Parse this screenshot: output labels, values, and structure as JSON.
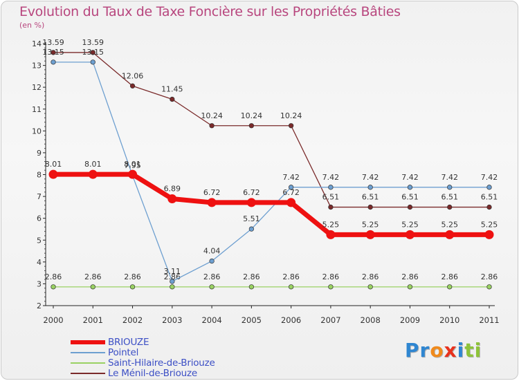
{
  "chart_data": {
    "type": "line",
    "title": "Evolution du Taux de Taxe Foncière sur les Propriétés Bâties",
    "ylabel": "(en %)",
    "xlabel": "",
    "categories": [
      "2000",
      "2001",
      "2002",
      "2003",
      "2004",
      "2005",
      "2006",
      "2007",
      "2008",
      "2009",
      "2010",
      "2011"
    ],
    "ylim": [
      2,
      14
    ],
    "yticks": [
      "2",
      "3",
      "4",
      "5",
      "6",
      "7",
      "8",
      "9",
      "10",
      "11",
      "12",
      "13",
      "14"
    ],
    "grid": false,
    "legend_position": "bottom-left",
    "series": [
      {
        "name": "Saint-Hilaire-de-Briouze",
        "color": "#99d162",
        "values": [
          2.86,
          2.86,
          2.86,
          2.86,
          2.86,
          2.86,
          2.86,
          2.86,
          2.86,
          2.86,
          2.86,
          2.86
        ],
        "labels": [
          "2.86",
          "2.86",
          "2.86",
          "2.86",
          "2.86",
          "2.86",
          "2.86",
          "2.86",
          "2.86",
          "2.86",
          "2.86",
          "2.86"
        ]
      },
      {
        "name": "Le Ménil-de-Briouze",
        "color": "#7a2a2a",
        "values": [
          13.59,
          13.59,
          12.06,
          11.45,
          10.24,
          10.24,
          10.24,
          6.51,
          6.51,
          6.51,
          6.51,
          6.51
        ],
        "labels": [
          "13.59",
          "13.59",
          "12.06",
          "11.45",
          "10.24",
          "10.24",
          "10.24",
          "6.51",
          "6.51",
          "6.51",
          "6.51",
          "6.51"
        ]
      },
      {
        "name": "Pointel",
        "color": "#6d9fd0",
        "values": [
          13.15,
          13.15,
          7.95,
          3.11,
          4.04,
          5.51,
          7.42,
          7.42,
          7.42,
          7.42,
          7.42,
          7.42
        ],
        "labels": [
          "13.15",
          "13.15",
          "7.95",
          "3.11",
          "4.04",
          "5.51",
          "7.42",
          "7.42",
          "7.42",
          "7.42",
          "7.42",
          "7.42"
        ]
      },
      {
        "name": "BRIOUZE",
        "color": "#ee1111",
        "values": [
          8.01,
          8.01,
          8.01,
          6.89,
          6.72,
          6.72,
          6.72,
          5.25,
          5.25,
          5.25,
          5.25,
          5.25
        ],
        "labels": [
          "8.01",
          "8.01",
          "8.01",
          "6.89",
          "6.72",
          "6.72",
          "6.72",
          "5.25",
          "5.25",
          "5.25",
          "5.25",
          "5.25"
        ]
      }
    ]
  },
  "legend": [
    {
      "label": "BRIOUZE",
      "color": "#ee1111",
      "thickness": 6
    },
    {
      "label": "Pointel",
      "color": "#6d9fd0",
      "thickness": 2
    },
    {
      "label": "Saint-Hilaire-de-Briouze",
      "color": "#99d162",
      "thickness": 2
    },
    {
      "label": "Le Ménil-de-Briouze",
      "color": "#7a2a2a",
      "thickness": 2
    }
  ],
  "logo": {
    "letters": [
      "P",
      "r",
      "o",
      "x",
      "i",
      "t",
      "i"
    ],
    "colors": [
      "#2f86d1",
      "#2f86d1",
      "#f08a1c",
      "#e8321e",
      "#2f86d1",
      "#8ec33a",
      "#8ec33a"
    ]
  }
}
